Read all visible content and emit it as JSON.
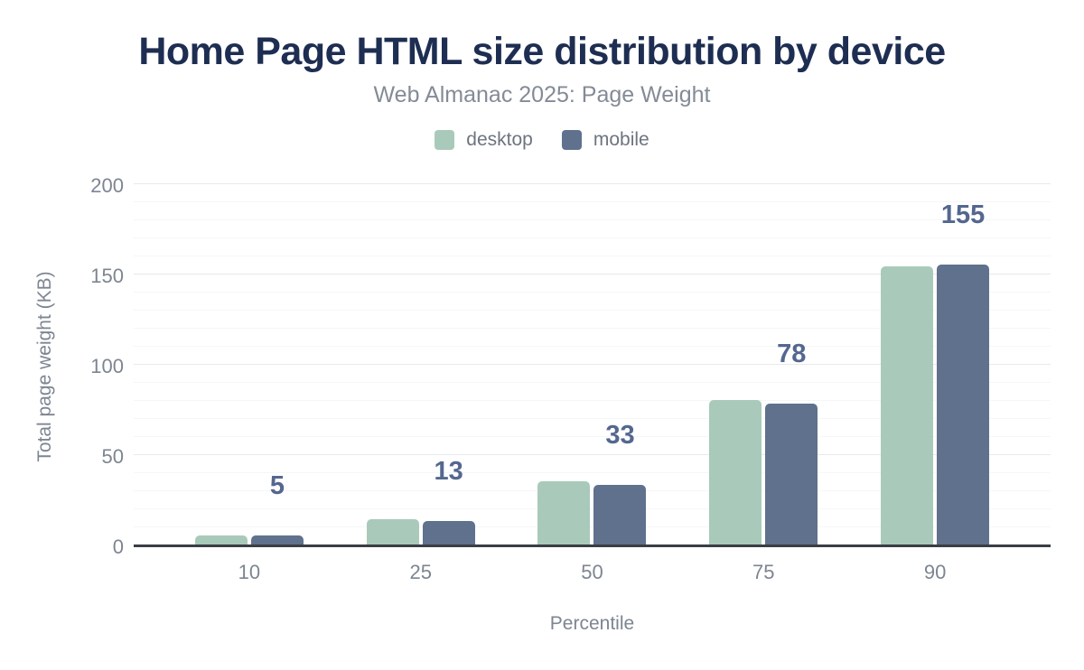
{
  "title": "Home Page HTML size distribution by device",
  "subtitle": "Web Almanac 2025: Page Weight",
  "colors": {
    "title": "#1e2e52",
    "subtitle": "#848b96",
    "axis_text": "#7d8591",
    "annotation": "#54678f",
    "desktop": "#a9caba",
    "mobile": "#5f718c",
    "grid_major": "#e8e9ec",
    "grid_minor": "#f5f6f8",
    "baseline": "#3a3e44"
  },
  "chart_data": {
    "type": "bar",
    "categories": [
      "10",
      "25",
      "50",
      "75",
      "90"
    ],
    "series": [
      {
        "name": "desktop",
        "color_key": "desktop",
        "values": [
          5,
          14,
          35,
          80,
          154
        ]
      },
      {
        "name": "mobile",
        "color_key": "mobile",
        "values": [
          5,
          13,
          33,
          78,
          155
        ]
      }
    ],
    "annotations": [
      "5",
      "13",
      "33",
      "78",
      "155"
    ],
    "annotation_series": "mobile",
    "title": "Home Page HTML size distribution by device",
    "subtitle": "Web Almanac 2025: Page Weight",
    "xlabel": "Percentile",
    "ylabel": "Total page weight (KB)",
    "ylim": [
      0,
      200
    ],
    "yticks": [
      0,
      50,
      100,
      150,
      200
    ],
    "ytick_step": 50,
    "minor_grid_step": 10,
    "grid": true,
    "legend_position": "top"
  }
}
